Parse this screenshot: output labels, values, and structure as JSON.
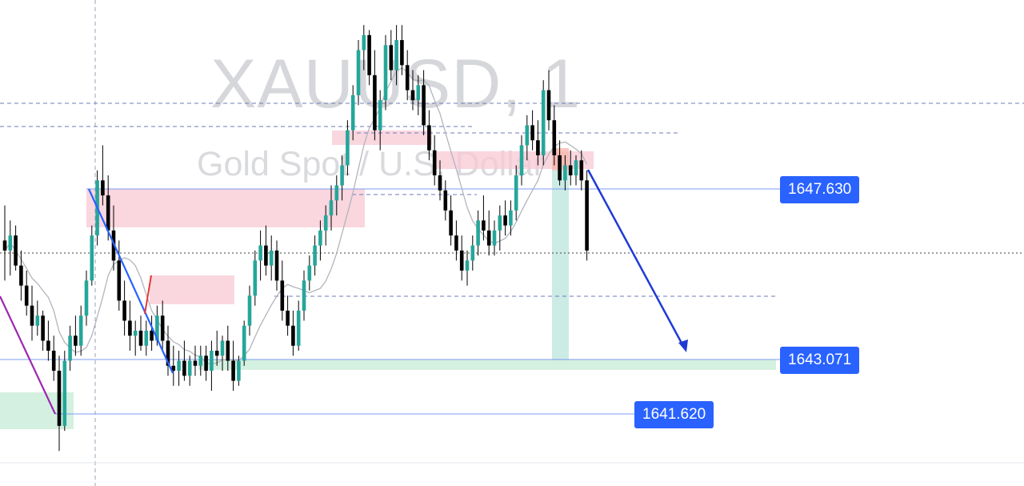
{
  "chart": {
    "symbol_watermark": "XAUUSD, 1",
    "description_watermark": "Gold Spot / U.S. Dollar",
    "price_labels": [
      {
        "value": "1647.630",
        "color": "#2962ff"
      },
      {
        "value": "1643.071",
        "color": "#2962ff"
      },
      {
        "value": "1641.620",
        "color": "#2962ff"
      }
    ]
  },
  "chart_data": {
    "type": "candlestick",
    "symbol": "XAUUSD",
    "timeframe": "1",
    "candle_colors": {
      "up": "#26a69a",
      "down": "#000000",
      "wick": "#000000"
    },
    "moving_average_color": "#b2b5be",
    "ylim": [
      1640.9,
      1650.6
    ],
    "horizontal_levels": [
      {
        "price": 1647.63,
        "style": "solid",
        "color": "#2962ff"
      },
      {
        "price": 1643.071,
        "style": "solid",
        "color": "#2962ff"
      },
      {
        "price": 1641.62,
        "style": "solid",
        "color": "#2962ff"
      }
    ],
    "forecast_arrow": {
      "direction": "down",
      "color": "#1f3bd6",
      "from_price": 1647.9,
      "to_price": 1643.2
    },
    "zones": [
      {
        "kind": "supply",
        "color": "#f8c8d4"
      },
      {
        "kind": "demand",
        "color": "#cfeedd"
      }
    ],
    "candles": [
      [
        1645.8,
        1646.5,
        1645.0,
        1645.6
      ],
      [
        1645.6,
        1646.2,
        1645.1,
        1645.9
      ],
      [
        1645.9,
        1646.1,
        1645.2,
        1645.3
      ],
      [
        1645.3,
        1645.6,
        1644.6,
        1644.9
      ],
      [
        1644.9,
        1645.2,
        1644.3,
        1644.5
      ],
      [
        1644.5,
        1644.9,
        1643.8,
        1644.1
      ],
      [
        1644.1,
        1644.6,
        1643.9,
        1644.3
      ],
      [
        1644.3,
        1644.4,
        1643.6,
        1643.8
      ],
      [
        1643.8,
        1644.2,
        1643.4,
        1643.6
      ],
      [
        1643.6,
        1643.9,
        1643.0,
        1643.2
      ],
      [
        1643.2,
        1643.5,
        1641.6,
        1642.1
      ],
      [
        1642.1,
        1643.6,
        1642.0,
        1643.4
      ],
      [
        1643.4,
        1644.1,
        1643.2,
        1643.9
      ],
      [
        1643.9,
        1644.3,
        1643.5,
        1643.7
      ],
      [
        1643.7,
        1644.5,
        1643.5,
        1644.3
      ],
      [
        1644.3,
        1645.2,
        1644.1,
        1645.0
      ],
      [
        1645.0,
        1646.1,
        1644.9,
        1645.9
      ],
      [
        1645.9,
        1647.2,
        1645.7,
        1647.0
      ],
      [
        1647.0,
        1647.7,
        1646.5,
        1646.7
      ],
      [
        1646.7,
        1647.1,
        1645.8,
        1646.0
      ],
      [
        1646.0,
        1646.5,
        1645.2,
        1645.4
      ],
      [
        1645.4,
        1645.8,
        1644.4,
        1644.6
      ],
      [
        1644.6,
        1645.0,
        1643.9,
        1644.2
      ],
      [
        1644.2,
        1644.6,
        1643.6,
        1643.9
      ],
      [
        1643.9,
        1644.2,
        1643.5,
        1644.0
      ],
      [
        1644.0,
        1644.3,
        1643.6,
        1643.7
      ],
      [
        1643.7,
        1644.2,
        1643.5,
        1644.0
      ],
      [
        1644.0,
        1644.3,
        1643.6,
        1643.8
      ],
      [
        1643.8,
        1644.5,
        1643.7,
        1644.3
      ],
      [
        1644.3,
        1644.6,
        1643.6,
        1643.8
      ],
      [
        1643.8,
        1644.1,
        1643.1,
        1643.3
      ],
      [
        1643.3,
        1643.7,
        1642.9,
        1643.2
      ],
      [
        1643.2,
        1643.6,
        1642.9,
        1643.4
      ],
      [
        1643.4,
        1643.8,
        1643.0,
        1643.1
      ],
      [
        1643.1,
        1643.5,
        1642.9,
        1643.4
      ],
      [
        1643.4,
        1643.7,
        1643.1,
        1643.3
      ],
      [
        1643.3,
        1643.7,
        1643.1,
        1643.5
      ],
      [
        1643.5,
        1643.7,
        1643.0,
        1643.2
      ],
      [
        1643.2,
        1643.8,
        1642.8,
        1643.6
      ],
      [
        1643.6,
        1644.0,
        1643.3,
        1643.5
      ],
      [
        1643.5,
        1643.9,
        1643.2,
        1643.8
      ],
      [
        1643.8,
        1644.1,
        1643.2,
        1643.4
      ],
      [
        1643.4,
        1643.8,
        1642.8,
        1643.0
      ],
      [
        1643.0,
        1643.5,
        1642.9,
        1643.4
      ],
      [
        1643.4,
        1644.2,
        1643.3,
        1644.1
      ],
      [
        1644.1,
        1644.9,
        1643.9,
        1644.7
      ],
      [
        1644.7,
        1645.6,
        1644.5,
        1645.4
      ],
      [
        1645.4,
        1646.0,
        1645.0,
        1645.7
      ],
      [
        1645.7,
        1646.1,
        1645.1,
        1645.3
      ],
      [
        1645.3,
        1645.9,
        1645.0,
        1645.6
      ],
      [
        1645.6,
        1645.8,
        1644.8,
        1645.0
      ],
      [
        1645.0,
        1645.4,
        1644.2,
        1644.4
      ],
      [
        1644.4,
        1644.7,
        1643.9,
        1644.1
      ],
      [
        1644.1,
        1644.4,
        1643.5,
        1643.7
      ],
      [
        1643.7,
        1644.6,
        1643.6,
        1644.4
      ],
      [
        1644.4,
        1645.2,
        1644.2,
        1645.0
      ],
      [
        1645.0,
        1645.5,
        1644.8,
        1645.3
      ],
      [
        1645.3,
        1645.9,
        1645.1,
        1645.7
      ],
      [
        1645.7,
        1646.2,
        1645.4,
        1646.0
      ],
      [
        1646.0,
        1646.5,
        1645.7,
        1646.3
      ],
      [
        1646.3,
        1646.9,
        1646.0,
        1646.6
      ],
      [
        1646.6,
        1647.1,
        1646.3,
        1646.9
      ],
      [
        1646.9,
        1647.5,
        1646.6,
        1647.3
      ],
      [
        1647.3,
        1648.2,
        1647.1,
        1648.0
      ],
      [
        1648.0,
        1648.9,
        1647.8,
        1648.7
      ],
      [
        1648.7,
        1649.8,
        1648.5,
        1649.6
      ],
      [
        1649.6,
        1650.1,
        1649.2,
        1649.9
      ],
      [
        1649.9,
        1650.0,
        1648.9,
        1649.1
      ],
      [
        1649.1,
        1649.6,
        1647.8,
        1648.0
      ],
      [
        1648.0,
        1648.8,
        1647.6,
        1648.6
      ],
      [
        1648.6,
        1649.9,
        1648.4,
        1649.7
      ],
      [
        1649.7,
        1650.0,
        1649.0,
        1649.2
      ],
      [
        1649.2,
        1650.1,
        1648.9,
        1649.8
      ],
      [
        1649.8,
        1650.1,
        1649.1,
        1649.3
      ],
      [
        1649.3,
        1649.6,
        1648.6,
        1648.8
      ],
      [
        1648.8,
        1649.2,
        1648.4,
        1648.6
      ],
      [
        1648.6,
        1649.1,
        1648.3,
        1648.9
      ],
      [
        1648.9,
        1649.2,
        1647.9,
        1648.1
      ],
      [
        1648.1,
        1648.4,
        1647.4,
        1647.6
      ],
      [
        1647.6,
        1647.9,
        1646.9,
        1647.1
      ],
      [
        1647.1,
        1647.4,
        1646.6,
        1646.8
      ],
      [
        1646.8,
        1647.0,
        1646.2,
        1646.4
      ],
      [
        1646.4,
        1646.7,
        1645.7,
        1645.9
      ],
      [
        1645.9,
        1646.2,
        1645.4,
        1645.6
      ],
      [
        1645.6,
        1645.9,
        1645.0,
        1645.2
      ],
      [
        1645.2,
        1645.6,
        1644.9,
        1645.4
      ],
      [
        1645.4,
        1645.9,
        1645.2,
        1645.7
      ],
      [
        1645.7,
        1646.4,
        1645.5,
        1646.2
      ],
      [
        1646.2,
        1646.7,
        1645.8,
        1646.0
      ],
      [
        1646.0,
        1646.4,
        1645.5,
        1645.7
      ],
      [
        1645.7,
        1646.2,
        1645.5,
        1646.0
      ],
      [
        1646.0,
        1646.5,
        1645.6,
        1646.3
      ],
      [
        1646.3,
        1646.6,
        1645.9,
        1646.1
      ],
      [
        1646.1,
        1646.6,
        1645.9,
        1646.4
      ],
      [
        1646.4,
        1647.3,
        1646.2,
        1647.1
      ],
      [
        1647.1,
        1647.9,
        1646.9,
        1647.7
      ],
      [
        1647.7,
        1648.3,
        1647.4,
        1648.1
      ],
      [
        1648.1,
        1648.4,
        1647.6,
        1647.8
      ],
      [
        1647.8,
        1648.2,
        1647.3,
        1647.5
      ],
      [
        1647.5,
        1649.0,
        1647.3,
        1648.8
      ],
      [
        1648.8,
        1649.2,
        1648.0,
        1648.2
      ],
      [
        1648.2,
        1648.5,
        1647.3,
        1647.5
      ],
      [
        1647.5,
        1647.8,
        1646.9,
        1647.0
      ],
      [
        1647.0,
        1647.5,
        1646.8,
        1647.3
      ],
      [
        1647.3,
        1647.6,
        1646.9,
        1647.1
      ],
      [
        1647.1,
        1647.5,
        1646.9,
        1647.4
      ],
      [
        1647.4,
        1647.6,
        1646.8,
        1647.0
      ],
      [
        1647.0,
        1647.2,
        1645.4,
        1645.6
      ]
    ]
  }
}
